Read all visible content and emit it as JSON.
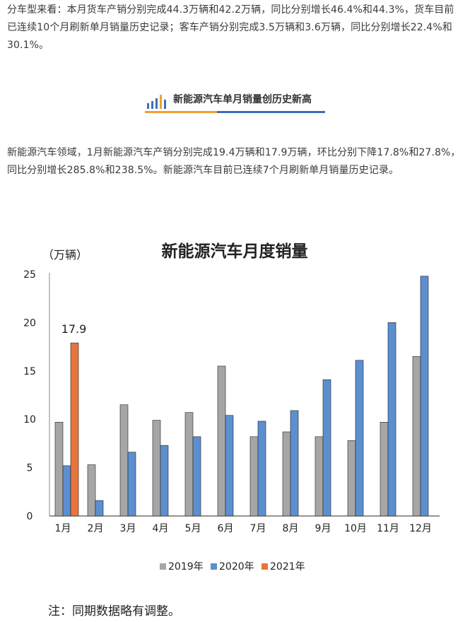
{
  "article": {
    "paragraph_1": "分车型来看：本月货车产销分别完成44.3万辆和42.2万辆，同比分别增长46.4%和44.3%，货车目前已连续10个月刷新单月销量历史记录；客车产销分别完成3.5万辆和3.6万辆，同比分别增长22.4%和30.1%。",
    "section_title": "新能源汽车单月销量创历史新高",
    "paragraph_2": "新能源汽车领域，1月新能源汽车产销分别完成19.4万辆和17.9万辆，环比分别下降17.8%和27.8%，同比分别增长285.8%和238.5%。新能源汽车目前已连续7个月刷新单月销量历史记录。",
    "note": "注：同期数据略有调整。"
  },
  "colors": {
    "accent_orange": "#f0a030",
    "accent_blue": "#3d6fb7"
  },
  "section_icon": "bar-chart-icon",
  "chart_data": {
    "type": "bar",
    "title": "新能源汽车月度销量",
    "ylabel": "（万辆）",
    "xlabel": "",
    "ylim": [
      0,
      25
    ],
    "yticks": [
      0,
      5,
      10,
      15,
      20,
      25
    ],
    "categories": [
      "1月",
      "2月",
      "3月",
      "4月",
      "5月",
      "6月",
      "7月",
      "8月",
      "9月",
      "10月",
      "11月",
      "12月"
    ],
    "series": [
      {
        "name": "2019年",
        "color": "#a6a6a6",
        "values": [
          9.7,
          5.3,
          11.5,
          9.9,
          10.7,
          15.5,
          8.2,
          8.7,
          8.2,
          7.8,
          9.7,
          16.5
        ]
      },
      {
        "name": "2020年",
        "color": "#5b8fd0",
        "values": [
          5.2,
          1.6,
          6.6,
          7.3,
          8.2,
          10.4,
          9.8,
          10.9,
          14.1,
          16.1,
          20.0,
          24.8
        ]
      },
      {
        "name": "2021年",
        "color": "#e8743b",
        "values": [
          17.9,
          null,
          null,
          null,
          null,
          null,
          null,
          null,
          null,
          null,
          null,
          null
        ]
      }
    ],
    "annotations": [
      {
        "category": "1月",
        "series": "2021年",
        "text": "17.9"
      }
    ],
    "legend_position": "bottom",
    "grid": false
  }
}
